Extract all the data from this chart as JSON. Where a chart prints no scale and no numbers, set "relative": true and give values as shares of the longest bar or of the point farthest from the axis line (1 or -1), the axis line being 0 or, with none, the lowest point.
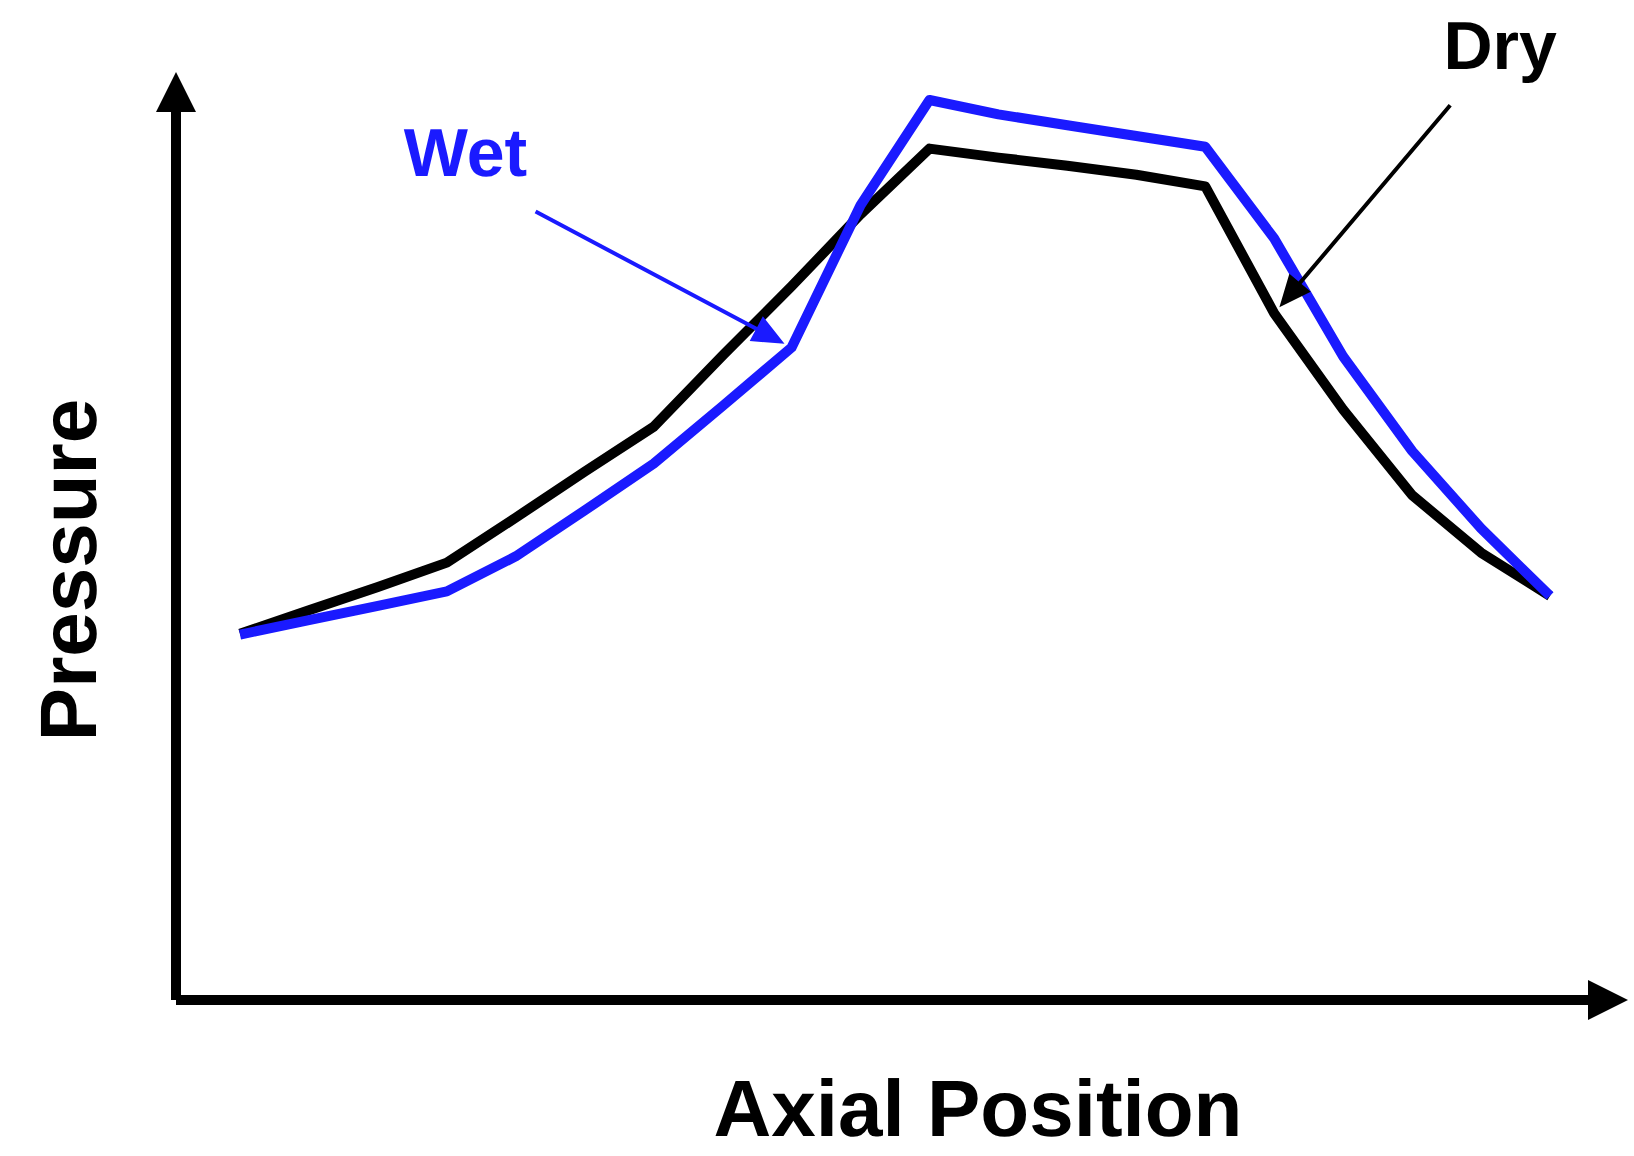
{
  "chart_data": {
    "type": "line",
    "xlabel": "Axial Position",
    "ylabel": "Pressure",
    "relative": true,
    "marker": "none",
    "line_style": "solid",
    "categories": [
      null,
      null,
      null,
      null,
      null,
      null,
      null,
      null,
      null,
      null,
      null,
      null,
      null,
      null,
      null,
      null,
      null,
      null,
      null,
      null
    ],
    "series": [
      {
        "name": "Dry",
        "color": "#000000",
        "values": [
          0.407,
          0.433,
          0.459,
          0.486,
          0.536,
          0.587,
          0.637,
          0.716,
          0.793,
          0.873,
          0.946,
          0.936,
          0.927,
          0.917,
          0.904,
          0.763,
          0.656,
          0.561,
          0.497,
          0.449
        ]
      },
      {
        "name": "Wet",
        "color": "#1a1aff",
        "values": [
          0.406,
          0.422,
          0.438,
          0.454,
          0.493,
          0.544,
          0.596,
          0.66,
          0.725,
          0.883,
          1.0,
          0.984,
          0.972,
          0.96,
          0.948,
          0.846,
          0.715,
          0.61,
          0.524,
          0.449
        ]
      }
    ]
  }
}
